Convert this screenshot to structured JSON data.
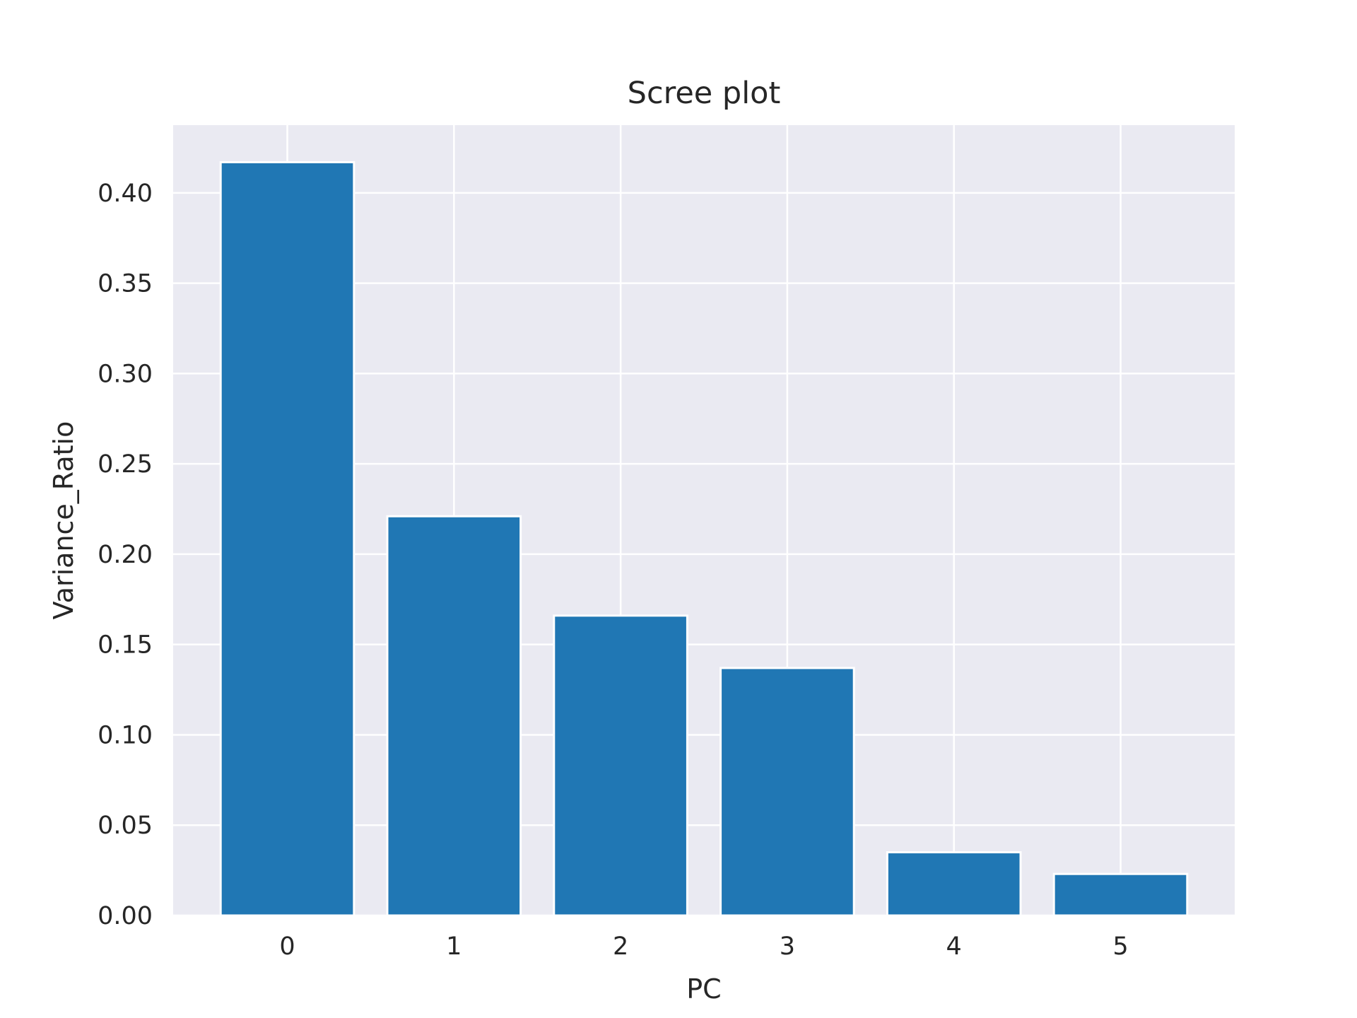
{
  "chart_data": {
    "type": "bar",
    "title": "Scree plot",
    "xlabel": "PC",
    "ylabel": "Variance_Ratio",
    "categories": [
      "0",
      "1",
      "2",
      "3",
      "4",
      "5"
    ],
    "values": [
      0.417,
      0.221,
      0.166,
      0.137,
      0.035,
      0.023
    ],
    "ylim": [
      0,
      0.4375
    ],
    "yticks": [
      "0.00",
      "0.05",
      "0.10",
      "0.15",
      "0.20",
      "0.25",
      "0.30",
      "0.35",
      "0.40"
    ],
    "grid": true,
    "legend": "none",
    "colors": {
      "bar": "#2077b4",
      "plot_background": "#eaeaf2",
      "grid": "#ffffff",
      "text": "#262626"
    }
  }
}
